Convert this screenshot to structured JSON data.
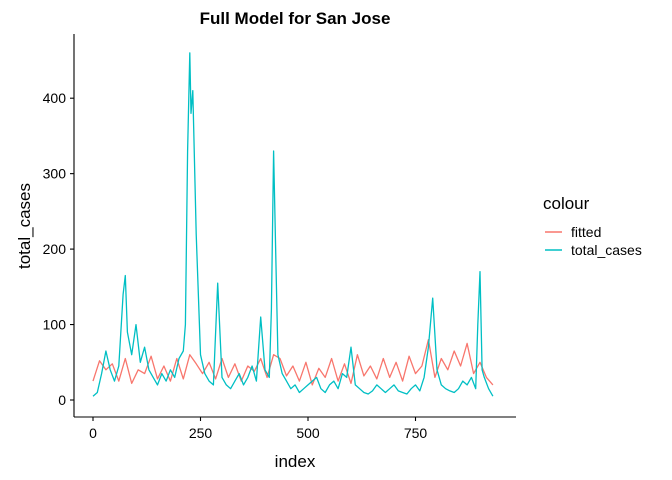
{
  "chart_data": {
    "type": "line",
    "title": "Full Model for San Jose",
    "xlabel": "index",
    "ylabel": "total_cases",
    "xlim": [
      0,
      936
    ],
    "ylim": [
      0,
      461
    ],
    "x_ticks": [
      0,
      250,
      500,
      750
    ],
    "x_tick_labels": [
      "0",
      "250",
      "500",
      "750"
    ],
    "y_ticks": [
      0,
      100,
      200,
      300,
      400
    ],
    "y_tick_labels": [
      "0",
      "100",
      "200",
      "300",
      "400"
    ],
    "grid": false,
    "legend": {
      "title": "colour",
      "placement": "right",
      "entries": [
        "fitted",
        "total_cases"
      ]
    },
    "series": [
      {
        "name": "fitted",
        "color": "#F8766D",
        "x": [
          0,
          15,
          30,
          45,
          60,
          75,
          90,
          105,
          120,
          135,
          150,
          165,
          180,
          195,
          210,
          225,
          240,
          255,
          270,
          285,
          300,
          315,
          330,
          345,
          360,
          375,
          390,
          405,
          420,
          435,
          450,
          465,
          480,
          495,
          510,
          525,
          540,
          555,
          570,
          585,
          600,
          615,
          630,
          645,
          660,
          675,
          690,
          705,
          720,
          735,
          750,
          765,
          780,
          795,
          810,
          825,
          840,
          855,
          870,
          885,
          900,
          915,
          930
        ],
        "values": [
          25,
          52,
          40,
          48,
          25,
          55,
          22,
          40,
          35,
          58,
          28,
          45,
          25,
          55,
          28,
          60,
          48,
          35,
          50,
          28,
          55,
          30,
          48,
          25,
          45,
          38,
          55,
          30,
          60,
          55,
          32,
          45,
          25,
          50,
          20,
          42,
          30,
          55,
          25,
          48,
          22,
          60,
          32,
          45,
          28,
          55,
          30,
          50,
          25,
          58,
          35,
          45,
          80,
          30,
          55,
          40,
          65,
          45,
          75,
          35,
          50,
          30,
          20
        ]
      },
      {
        "name": "total_cases",
        "color": "#00BFC4",
        "x": [
          0,
          10,
          20,
          30,
          40,
          50,
          60,
          70,
          75,
          80,
          90,
          100,
          110,
          120,
          130,
          140,
          150,
          160,
          170,
          180,
          190,
          200,
          210,
          215,
          220,
          225,
          228,
          232,
          240,
          250,
          260,
          270,
          280,
          290,
          300,
          310,
          320,
          330,
          340,
          350,
          360,
          370,
          380,
          390,
          400,
          410,
          415,
          420,
          425,
          430,
          440,
          450,
          460,
          470,
          480,
          490,
          500,
          510,
          520,
          530,
          540,
          550,
          560,
          570,
          580,
          590,
          600,
          610,
          620,
          630,
          640,
          650,
          660,
          670,
          680,
          690,
          700,
          710,
          720,
          730,
          740,
          750,
          760,
          770,
          780,
          790,
          800,
          810,
          820,
          830,
          840,
          850,
          860,
          870,
          880,
          890,
          895,
          900,
          905,
          910,
          920,
          930
        ],
        "values": [
          5,
          10,
          35,
          65,
          40,
          25,
          45,
          140,
          165,
          90,
          60,
          100,
          50,
          70,
          40,
          30,
          20,
          35,
          25,
          40,
          30,
          55,
          65,
          100,
          330,
          460,
          380,
          410,
          220,
          60,
          35,
          25,
          20,
          155,
          30,
          20,
          15,
          25,
          35,
          20,
          30,
          45,
          25,
          110,
          40,
          30,
          120,
          330,
          190,
          60,
          35,
          25,
          15,
          20,
          10,
          15,
          20,
          25,
          30,
          15,
          10,
          20,
          25,
          15,
          35,
          30,
          70,
          20,
          15,
          10,
          8,
          12,
          20,
          15,
          10,
          15,
          20,
          12,
          10,
          8,
          15,
          20,
          12,
          30,
          70,
          135,
          40,
          20,
          15,
          12,
          10,
          15,
          25,
          20,
          30,
          15,
          100,
          170,
          40,
          30,
          15,
          5
        ]
      }
    ]
  }
}
